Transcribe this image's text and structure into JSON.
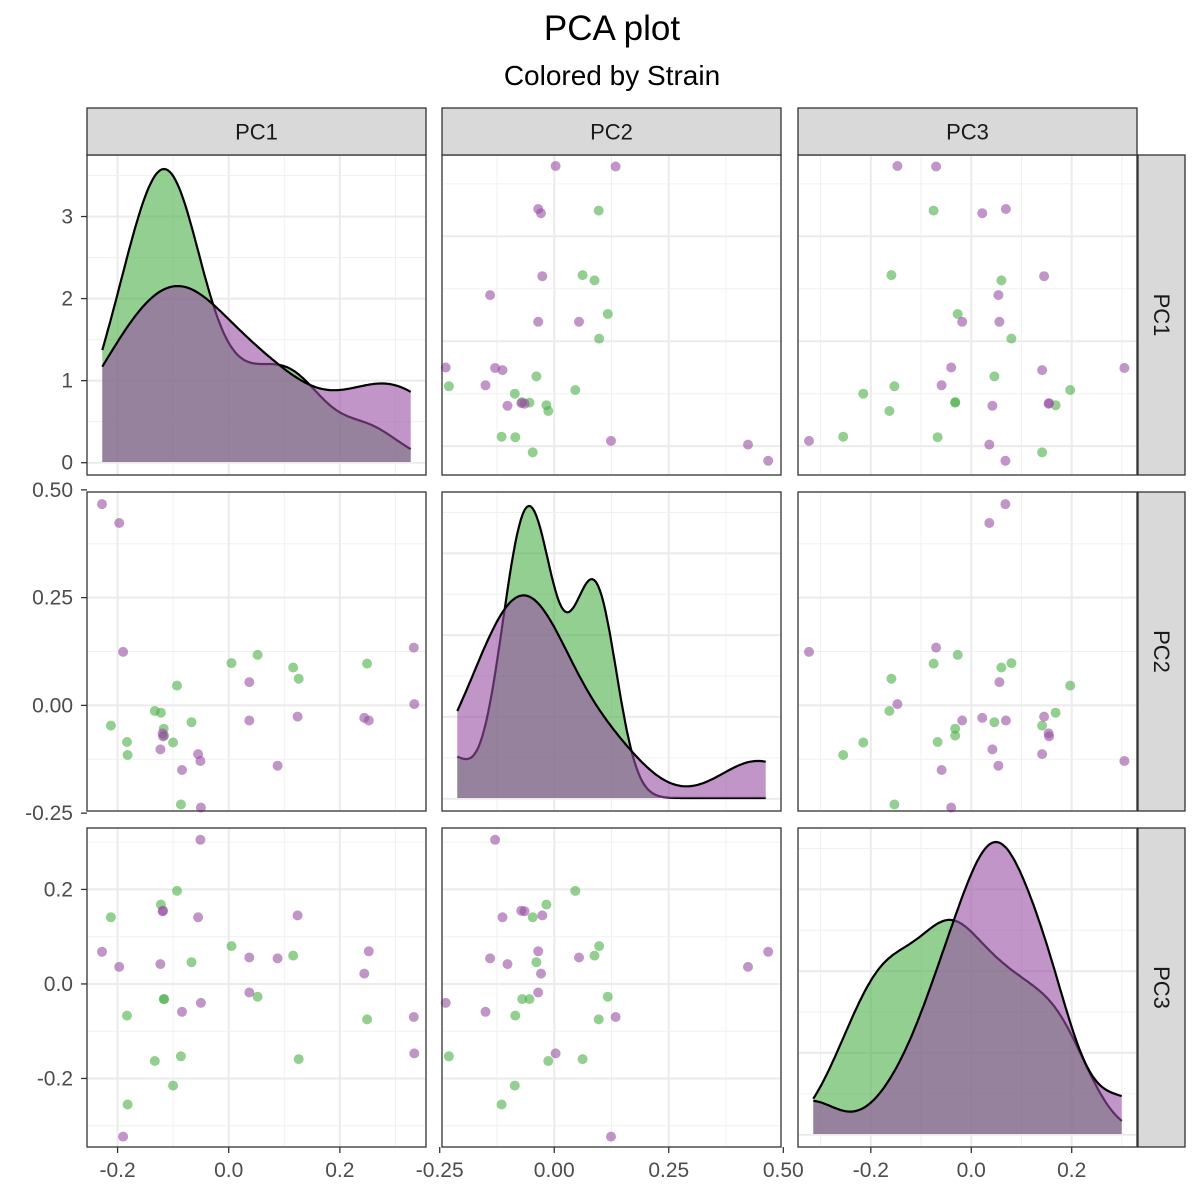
{
  "chart_data": {
    "type": "scatter",
    "subtype": "pairs-matrix",
    "title": "PCA plot",
    "subtitle": "Colored by Strain",
    "variables": [
      "PC1",
      "PC2",
      "PC3"
    ],
    "diagonal": "density",
    "off_diagonal": "scatter",
    "colors": {
      "green": "#4daf4a",
      "purple": "#984ea3",
      "density_line": "#000000",
      "strip_fill": "#d9d9d9"
    },
    "ranges": {
      "PC1": [
        -0.255,
        0.355
      ],
      "PC2": [
        -0.245,
        0.495
      ],
      "PC3": [
        -0.345,
        0.33
      ]
    },
    "diag_count_axis": {
      "ticks": [
        0,
        1,
        2,
        3
      ],
      "tick_labels": [
        "0",
        "1",
        "2",
        "3"
      ],
      "range": [
        -0.15,
        3.75
      ]
    },
    "x_ticks": {
      "PC1": {
        "values": [
          -0.2,
          0.0,
          0.2
        ],
        "labels": [
          "-0.2",
          "0.0",
          "0.2"
        ]
      },
      "PC2": {
        "values": [
          -0.25,
          0.0,
          0.25,
          0.5
        ],
        "labels": [
          "-0.25",
          "0.00",
          "0.25",
          "0.50"
        ]
      },
      "PC3": {
        "values": [
          -0.2,
          0.0,
          0.2
        ],
        "labels": [
          "-0.2",
          "0.0",
          "0.2"
        ]
      }
    },
    "y_ticks": {
      "PC2": {
        "values": [
          -0.25,
          0.0,
          0.25,
          0.5
        ],
        "labels": [
          "-0.25",
          "0.00",
          "0.25",
          "0.50"
        ]
      },
      "PC3": {
        "values": [
          -0.2,
          0.0,
          0.2
        ],
        "labels": [
          "-0.2",
          "0.0",
          "0.2"
        ]
      }
    },
    "series": [
      {
        "color": "green",
        "PC1": [
          -0.212,
          -0.183,
          -0.182,
          -0.133,
          -0.122,
          -0.117,
          -0.116,
          -0.1,
          -0.093,
          -0.086,
          -0.067,
          0.005,
          0.052,
          0.116,
          0.126,
          0.249
        ],
        "PC2": [
          -0.047,
          -0.085,
          -0.115,
          -0.013,
          -0.017,
          -0.054,
          -0.07,
          -0.086,
          0.046,
          -0.23,
          -0.039,
          0.098,
          0.117,
          0.088,
          0.062,
          0.097
        ],
        "PC3": [
          0.141,
          -0.067,
          -0.255,
          -0.163,
          0.168,
          -0.032,
          -0.032,
          -0.215,
          0.197,
          -0.153,
          0.046,
          0.08,
          -0.027,
          0.06,
          -0.159,
          -0.075
        ]
      },
      {
        "color": "purple",
        "PC1": [
          -0.228,
          -0.197,
          -0.19,
          -0.123,
          -0.119,
          -0.118,
          -0.084,
          -0.055,
          -0.051,
          -0.05,
          0.037,
          0.037,
          0.088,
          0.124,
          0.244,
          0.252,
          0.333,
          0.334
        ],
        "PC2": [
          0.467,
          0.423,
          0.124,
          -0.102,
          -0.065,
          -0.072,
          -0.15,
          -0.113,
          -0.129,
          -0.237,
          0.054,
          -0.035,
          -0.14,
          -0.026,
          -0.029,
          -0.035,
          0.134,
          0.003
        ],
        "PC3": [
          0.068,
          0.036,
          -0.323,
          0.042,
          0.154,
          0.155,
          -0.059,
          0.141,
          0.305,
          -0.04,
          0.056,
          -0.018,
          0.054,
          0.145,
          0.022,
          0.069,
          -0.07,
          -0.147
        ]
      }
    ]
  }
}
